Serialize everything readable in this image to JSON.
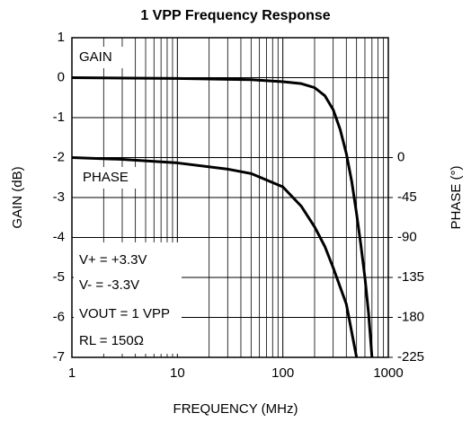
{
  "chart_data": {
    "type": "line",
    "title": "1 VPP Frequency Response",
    "xlabel": "FREQUENCY (MHz)",
    "ylabel": "GAIN (dB)",
    "y2label": "PHASE (°)",
    "xscale": "log",
    "xlim": [
      1,
      1000
    ],
    "xticks": [
      1,
      10,
      100,
      1000
    ],
    "ylim": [
      -7,
      1
    ],
    "yticks": [
      1,
      0,
      -1,
      -2,
      -3,
      -4,
      -5,
      -6,
      -7
    ],
    "y2lim": [
      -225,
      135
    ],
    "y2ticks": [
      0,
      -45,
      -90,
      -135,
      -180,
      -225
    ],
    "grid": true,
    "series": [
      {
        "name": "GAIN",
        "color": "#000000",
        "x": [
          1,
          10,
          50,
          100,
          150,
          200,
          250,
          300,
          350,
          400,
          450,
          500,
          550,
          600,
          650,
          700
        ],
        "values": [
          0,
          -0.02,
          -0.05,
          -0.1,
          -0.15,
          -0.25,
          -0.45,
          -0.8,
          -1.3,
          -1.9,
          -2.6,
          -3.4,
          -4.2,
          -5,
          -5.9,
          -7
        ]
      },
      {
        "name": "PHASE",
        "color": "#000000",
        "axis": "y2",
        "x": [
          1,
          3,
          10,
          30,
          50,
          100,
          150,
          200,
          250,
          300,
          400,
          500
        ],
        "values": [
          0,
          -2,
          -6,
          -13,
          -18,
          -33,
          -55,
          -78,
          -100,
          -124,
          -165,
          -225
        ]
      }
    ],
    "annotations": [
      "V+ = +3.3V",
      "V- = -3.3V",
      "VOUT = 1 VPP",
      "RL = 150Ω"
    ]
  }
}
